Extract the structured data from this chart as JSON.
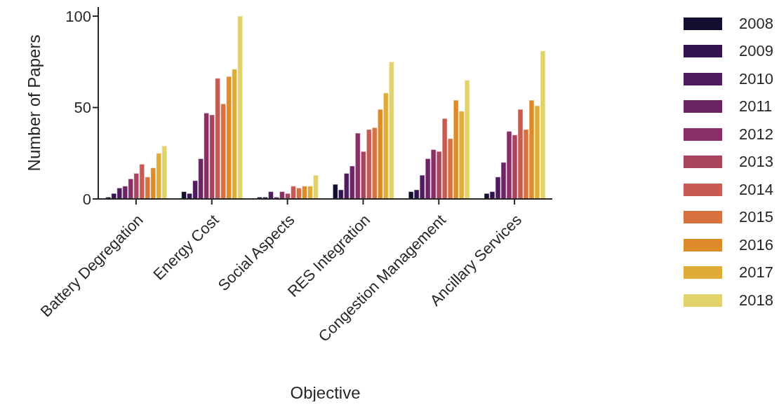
{
  "chart_data": {
    "type": "bar",
    "xlabel": "Objective",
    "ylabel": "Number of Papers",
    "categories": [
      "Battery Degregation",
      "Energy Cost",
      "Social Aspects",
      "RES Integration",
      "Congestion Management",
      "Ancillary Services"
    ],
    "series": [
      {
        "name": "2008",
        "color": "#140f31",
        "values": [
          1,
          4,
          1,
          8,
          4,
          3
        ]
      },
      {
        "name": "2009",
        "color": "#32124f",
        "values": [
          3,
          3,
          1,
          5,
          5,
          4
        ]
      },
      {
        "name": "2010",
        "color": "#4f1a5e",
        "values": [
          6,
          10,
          4,
          14,
          13,
          12
        ]
      },
      {
        "name": "2011",
        "color": "#6b2464",
        "values": [
          7,
          22,
          1,
          18,
          22,
          20
        ]
      },
      {
        "name": "2012",
        "color": "#892f65",
        "values": [
          11,
          47,
          4,
          36,
          27,
          37
        ]
      },
      {
        "name": "2013",
        "color": "#a7445e",
        "values": [
          14,
          46,
          3,
          26,
          26,
          35
        ]
      },
      {
        "name": "2014",
        "color": "#c65b53",
        "values": [
          19,
          66,
          7,
          38,
          44,
          49
        ]
      },
      {
        "name": "2015",
        "color": "#d87140",
        "values": [
          12,
          52,
          6,
          39,
          33,
          38
        ]
      },
      {
        "name": "2016",
        "color": "#dd8b29",
        "values": [
          17,
          67,
          7,
          49,
          54,
          54
        ]
      },
      {
        "name": "2017",
        "color": "#dfac38",
        "values": [
          25,
          71,
          7,
          58,
          48,
          51
        ]
      },
      {
        "name": "2018",
        "color": "#e2d26b",
        "values": [
          29,
          100,
          13,
          75,
          65,
          81
        ]
      }
    ],
    "ylim": [
      0,
      105
    ],
    "yticks": [
      0,
      50,
      100
    ],
    "grid": false,
    "legend": "right"
  }
}
